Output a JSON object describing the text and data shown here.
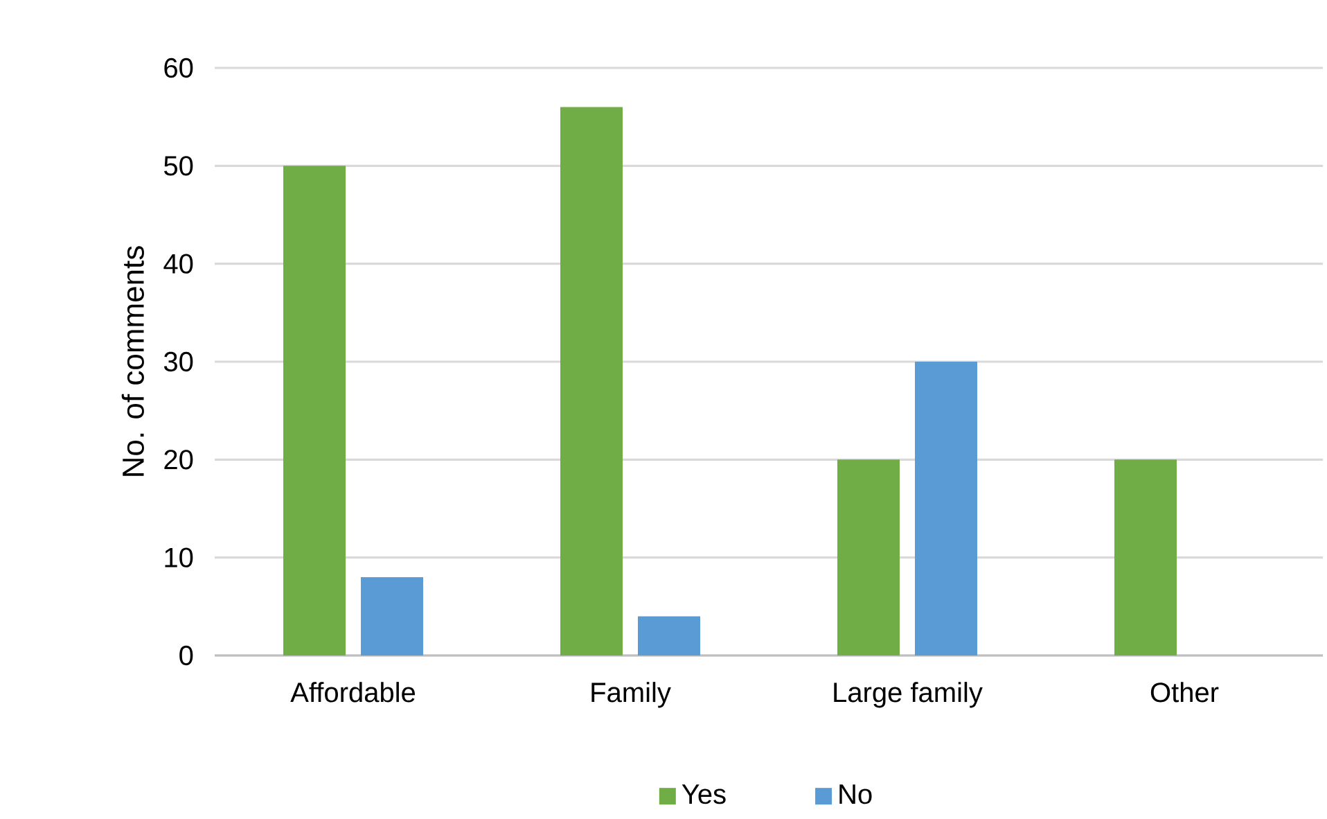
{
  "chart_data": {
    "type": "bar",
    "ylabel": "No. of comments",
    "categories": [
      "Affordable",
      "Family",
      "Large family",
      "Other"
    ],
    "series": [
      {
        "name": "Yes",
        "color": "#70ad47",
        "values": [
          50,
          56,
          20,
          20
        ]
      },
      {
        "name": "No",
        "color": "#5b9bd5",
        "values": [
          8,
          4,
          30,
          0
        ]
      }
    ],
    "ylim": [
      0,
      60
    ],
    "yticks": [
      0,
      10,
      20,
      30,
      40,
      50,
      60
    ],
    "grid": "y",
    "legend": "bottom"
  }
}
